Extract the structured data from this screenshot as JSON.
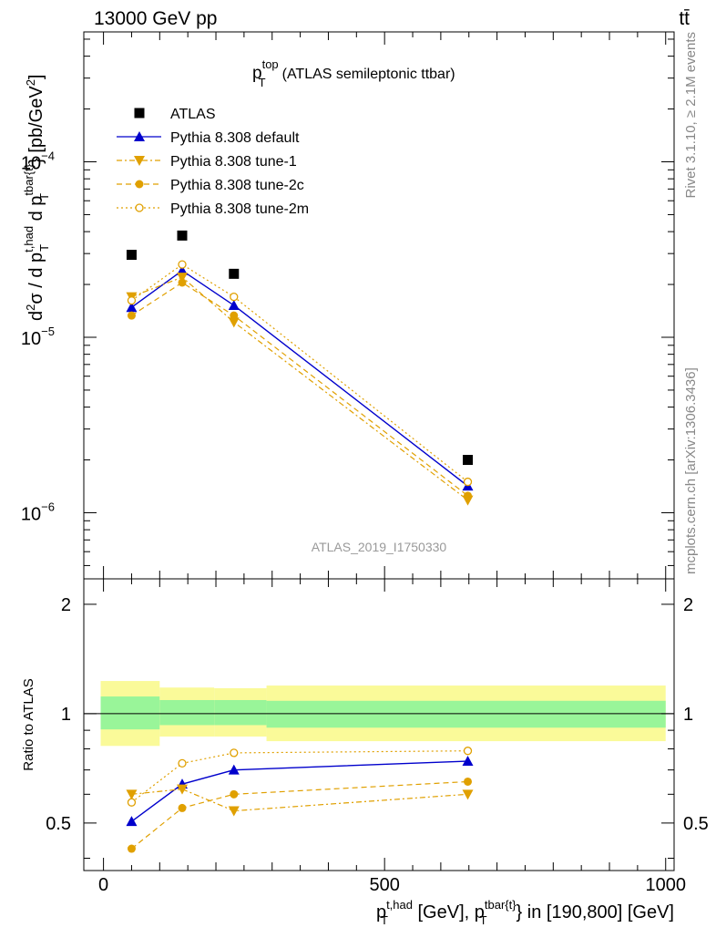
{
  "header": {
    "left": "13000 GeV pp",
    "right": "tt̄"
  },
  "side_labels": {
    "rivet": "Rivet 3.1.10, ≥ 2.1M events",
    "mcplots": "mcplots.cern.ch [arXiv:1306.3436]"
  },
  "plot_title": {
    "main": "p",
    "sup": "top",
    "sub": "T",
    "rest": "(ATLAS semileptonic ttbar)"
  },
  "watermark": "ATLAS_2019_I1750330",
  "top_ylabel": {
    "p1": "d",
    "s1": "2",
    "p2": "σ / d p",
    "s2_sup": "t,had",
    "s2_sub": "T",
    "p3": " d p",
    "s3_sup": "tbar{t}",
    "s3_sub": "T",
    "p4": "} [pb/GeV",
    "s4": "2",
    "p5": "]"
  },
  "bottom_ylabel": "Ratio to ATLAS",
  "xlabel": {
    "p1": "p",
    "s1_sup": "t,had",
    "s1_sub": "T",
    "p2": " [GeV], p",
    "s2_sup": "tbar{t}",
    "s2_sub": "T",
    "p3": "} in [190,800] [GeV]"
  },
  "top_yticks": [
    {
      "base": "10",
      "exp": "−4",
      "value": 0.0001
    },
    {
      "base": "10",
      "exp": "−5",
      "value": 1e-05
    },
    {
      "base": "10",
      "exp": "−6",
      "value": 1e-06
    }
  ],
  "bottom_yticks": [
    {
      "label": "2",
      "value": 2
    },
    {
      "label": "1",
      "value": 1
    },
    {
      "label": "0.5",
      "value": 0.5
    }
  ],
  "xticks": [
    {
      "label": "0",
      "value": 0
    },
    {
      "label": "500",
      "value": 500
    },
    {
      "label": "1000",
      "value": 1000
    }
  ],
  "colors": {
    "atlas": "#000000",
    "default": "#0000cc",
    "tune": "#e0a000",
    "band_inner": "#99f599",
    "band_outer": "#fafa99"
  },
  "chart_data": {
    "type": "scatter",
    "x_range": [
      -35,
      1015
    ],
    "y_range_top_log": [
      4.2e-07,
      0.00055
    ],
    "y_range_ratio_log": [
      0.37,
      2.35
    ],
    "y_scale": "log",
    "legend_position": "top-left",
    "x": [
      50,
      140,
      232,
      648
    ],
    "atlas": {
      "name": "ATLAS",
      "values": [
        2.95e-05,
        3.8e-05,
        2.3e-05,
        2e-06
      ],
      "bins": [
        [
          -5,
          100
        ],
        [
          100,
          197
        ],
        [
          197,
          290
        ],
        [
          290,
          1000
        ]
      ],
      "band_inner": [
        [
          0.905,
          1.115
        ],
        [
          0.93,
          1.09
        ],
        [
          0.93,
          1.09
        ],
        [
          0.915,
          1.085
        ]
      ],
      "band_outer": [
        [
          0.815,
          1.23
        ],
        [
          0.865,
          1.18
        ],
        [
          0.865,
          1.175
        ],
        [
          0.84,
          1.195
        ]
      ]
    },
    "series": [
      {
        "name": "Pythia 8.308 default",
        "key": "default",
        "values": [
          1.48e-05,
          2.4e-05,
          1.52e-05,
          1.42e-06
        ],
        "ratio": [
          0.505,
          0.64,
          0.7,
          0.74
        ]
      },
      {
        "name": "Pythia 8.308 tune-1",
        "key": "tune1",
        "values": [
          1.7e-05,
          2.2e-05,
          1.22e-05,
          1.18e-06
        ],
        "ratio": [
          0.6,
          0.62,
          0.54,
          0.6
        ]
      },
      {
        "name": "Pythia 8.308 tune-2c",
        "key": "tune2c",
        "values": [
          1.33e-05,
          2.05e-05,
          1.33e-05,
          1.25e-06
        ],
        "ratio": [
          0.425,
          0.55,
          0.6,
          0.65
        ]
      },
      {
        "name": "Pythia 8.308 tune-2m",
        "key": "tune2m",
        "values": [
          1.62e-05,
          2.6e-05,
          1.7e-05,
          1.5e-06
        ],
        "ratio": [
          0.57,
          0.73,
          0.78,
          0.79
        ]
      }
    ]
  }
}
